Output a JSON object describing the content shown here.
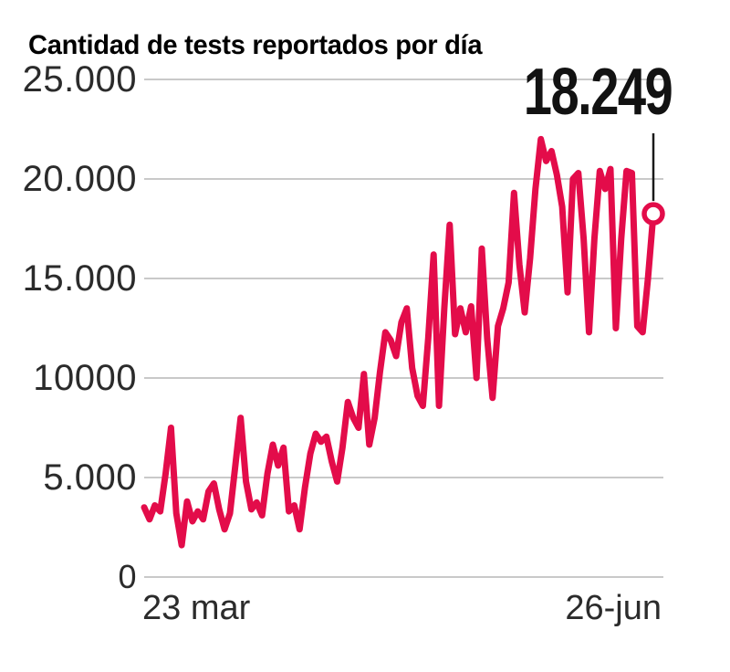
{
  "title": "Cantidad de tests reportados por día",
  "chart_data": {
    "type": "line",
    "title": "Cantidad de tests reportados por día",
    "series_name": "Tests reportados por día",
    "x_start_label": "23 mar",
    "x_end_label": "26-jun",
    "frequency": "daily",
    "y_ticks": [
      "25.000",
      "20.000",
      "15.000",
      "10000",
      "5.000",
      "0"
    ],
    "y_tick_values": [
      25000,
      20000,
      15000,
      10000,
      5000,
      0
    ],
    "ylim": [
      0,
      25000
    ],
    "grid": "horizontal-only",
    "legend": "none",
    "line_color": "#e30c4a",
    "grid_color": "#c9c9c9",
    "leader_color": "#1a1a1a",
    "marker_fill": "#ffffff",
    "values": [
      3500,
      2900,
      3600,
      3300,
      5200,
      7500,
      3200,
      1600,
      3800,
      2800,
      3300,
      2900,
      4300,
      4700,
      3400,
      2400,
      3200,
      5600,
      8000,
      4800,
      3400,
      3750,
      3100,
      5200,
      6650,
      5600,
      6500,
      3300,
      3600,
      2400,
      4500,
      6200,
      7200,
      6800,
      7050,
      5800,
      4800,
      6500,
      8800,
      8000,
      7500,
      10200,
      6650,
      8000,
      10300,
      12300,
      11900,
      11100,
      12800,
      13500,
      10500,
      9100,
      8600,
      12000,
      16200,
      8600,
      13500,
      17700,
      12200,
      13500,
      12300,
      13600,
      10000,
      16500,
      12000,
      9000,
      12600,
      13500,
      14800,
      19300,
      15700,
      13300,
      16000,
      19500,
      22000,
      20900,
      21400,
      20200,
      18600,
      14300,
      20000,
      20300,
      17000,
      12300,
      17000,
      20400,
      19500,
      20500,
      12500,
      17000,
      20400,
      20300,
      12600,
      12300,
      15000,
      18249
    ],
    "last_value": 18249,
    "annotation": {
      "label": "18.249",
      "value": 18249
    }
  }
}
